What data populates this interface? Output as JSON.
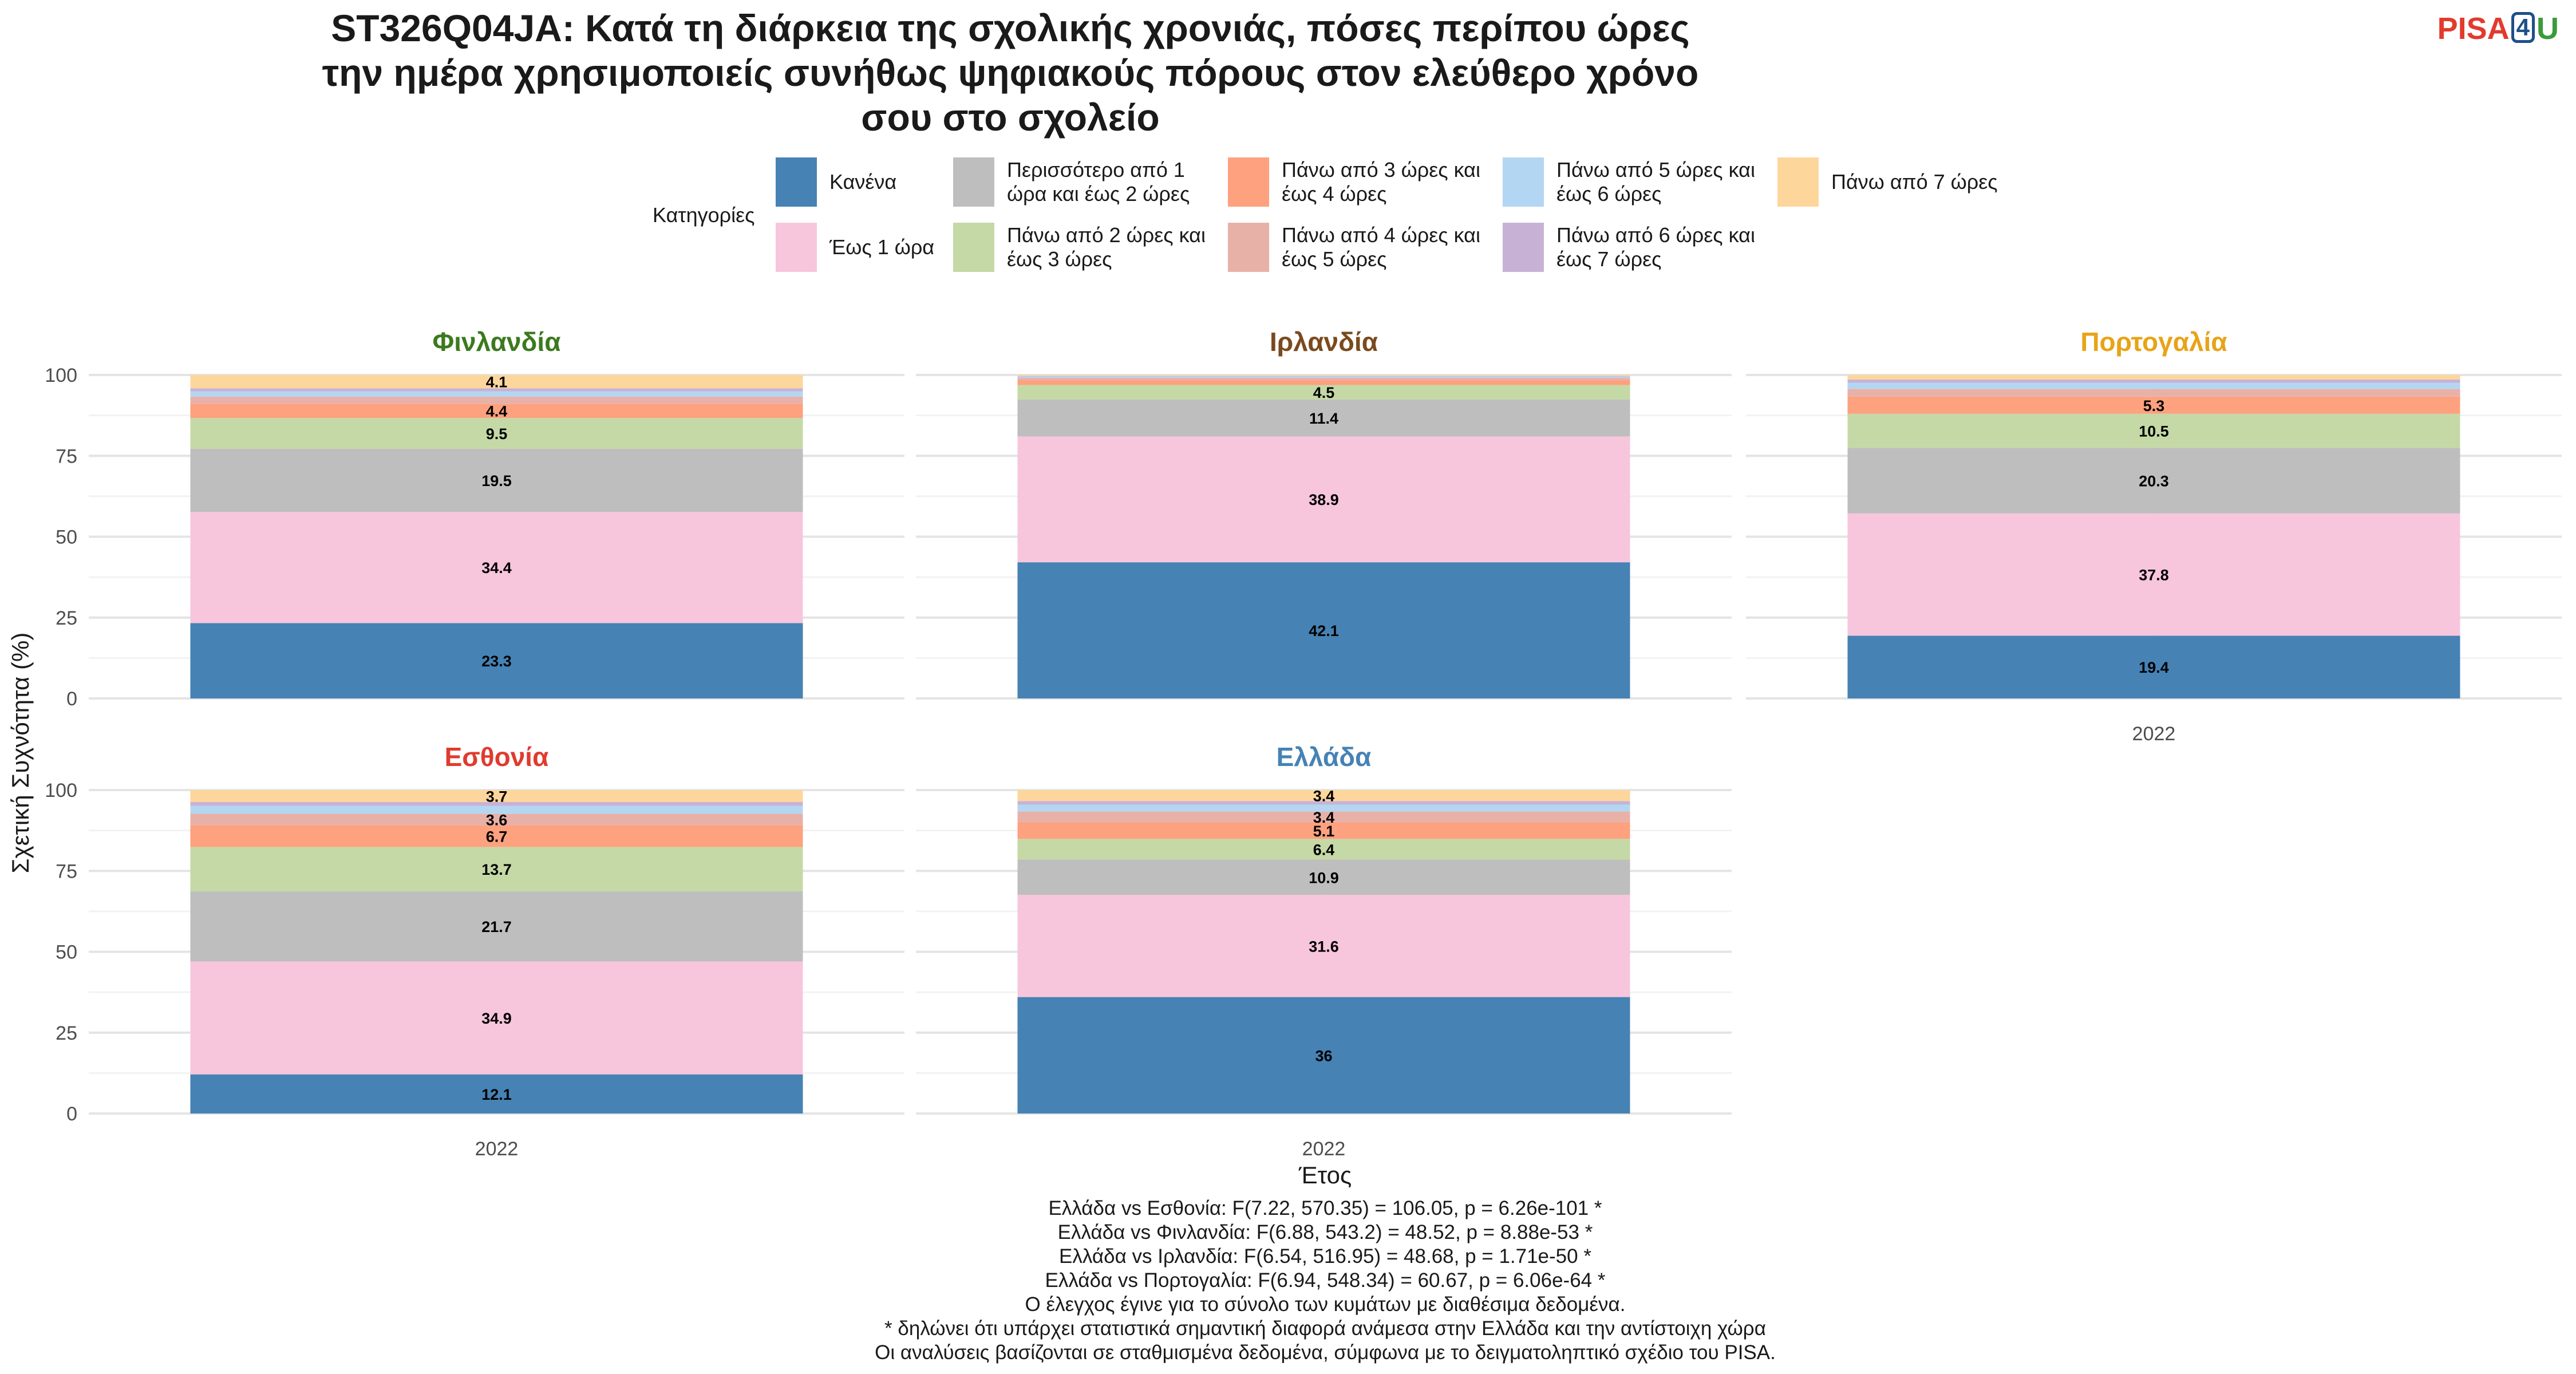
{
  "title_lines": [
    "ST326Q04JA: Κατά τη διάρκεια της σχολικής χρονιάς, πόσες περίπου ώρες",
    "την ημέρα χρησιμοποιείς συνήθως ψηφιακούς πόρους στον ελεύθερο χρόνο",
    "σου στο σχολείο"
  ],
  "logo": {
    "part1": "PISA",
    "part2": "4",
    "part3": "U"
  },
  "legend": {
    "title": "Κατηγορίες",
    "items": [
      {
        "label": "Κανένα",
        "color": "#4682b4"
      },
      {
        "label": "Έως 1 ώρα",
        "color": "#f7c6dc"
      },
      {
        "label": "Περισσότερο από 1\nώρα και έως 2 ώρες",
        "color": "#bebebe"
      },
      {
        "label": "Πάνω από 2 ώρες και\nέως 3 ώρες",
        "color": "#c5d9a6"
      },
      {
        "label": "Πάνω από 3 ώρες και\nέως 4 ώρες",
        "color": "#fda17e"
      },
      {
        "label": "Πάνω από 4 ώρες και\nέως 5 ώρες",
        "color": "#e8b1a8"
      },
      {
        "label": "Πάνω από 5 ώρες και\nέως 6 ώρες",
        "color": "#b3d6f2"
      },
      {
        "label": "Πάνω από 6 ώρες και\nέως 7 ώρες",
        "color": "#c7b2d6"
      },
      {
        "label": "Πάνω από 7 ώρες",
        "color": "#fdd69c"
      }
    ]
  },
  "chart_data": {
    "type": "bar",
    "stacked": true,
    "ylabel": "Σχετική Συχνότητα (%)",
    "xlabel": "Έτος",
    "ylim": [
      0,
      100
    ],
    "yticks": [
      0,
      25,
      50,
      75,
      100
    ],
    "categories": [
      "2022"
    ],
    "grid": true,
    "legend_position": "top",
    "panels": [
      {
        "country": "Φινλανδία",
        "title_color": "#3b7a1e",
        "values": [
          23.3,
          34.4,
          19.5,
          9.5,
          4.4,
          2.2,
          1.6,
          1.0,
          4.1
        ],
        "labels": [
          "23.3",
          "34.4",
          "19.5",
          "9.5",
          "4.4",
          "",
          "",
          "",
          "4.1"
        ],
        "show_x_axis": false
      },
      {
        "country": "Ιρλανδία",
        "title_color": "#7a4a1e",
        "values": [
          42.1,
          38.9,
          11.4,
          4.5,
          1.5,
          0.7,
          0.4,
          0.2,
          0.3
        ],
        "labels": [
          "42.1",
          "38.9",
          "11.4",
          "4.5",
          "",
          "",
          "",
          "",
          ""
        ],
        "show_x_axis": false
      },
      {
        "country": "Πορτογαλία",
        "title_color": "#e8a317",
        "values": [
          19.4,
          37.8,
          20.3,
          10.5,
          5.3,
          2.4,
          1.9,
          1.0,
          1.4
        ],
        "labels": [
          "19.4",
          "37.8",
          "20.3",
          "10.5",
          "5.3",
          "",
          "",
          "",
          ""
        ],
        "show_x_axis": true
      },
      {
        "country": "Εσθονία",
        "title_color": "#e03b2e",
        "values": [
          12.1,
          34.9,
          21.7,
          13.7,
          6.7,
          3.6,
          2.4,
          1.2,
          3.7
        ],
        "labels": [
          "12.1",
          "34.9",
          "21.7",
          "13.7",
          "6.7",
          "3.6",
          "",
          "",
          "3.7"
        ],
        "show_x_axis": true
      },
      {
        "country": "Ελλάδα",
        "title_color": "#4682b4",
        "values": [
          36,
          31.6,
          10.9,
          6.4,
          5.1,
          3.4,
          2.1,
          1.1,
          3.4
        ],
        "labels": [
          "36",
          "31.6",
          "10.9",
          "6.4",
          "5.1",
          "3.4",
          "",
          "",
          "3.4"
        ],
        "show_x_axis": true
      }
    ]
  },
  "footer_lines": [
    "Ελλάδα vs Εσθονία: F(7.22, 570.35) = 106.05, p = 6.26e-101 *",
    "Ελλάδα vs Φινλανδία: F(6.88, 543.2) = 48.52, p = 8.88e-53 *",
    "Ελλάδα vs Ιρλανδία: F(6.54, 516.95) = 48.68, p = 1.71e-50 *",
    "Ελλάδα vs Πορτογαλία: F(6.94, 548.34) = 60.67, p = 6.06e-64 *",
    "Ο έλεγχος έγινε για το σύνολο των κυμάτων με διαθέσιμα δεδομένα.",
    "* δηλώνει ότι υπάρχει στατιστικά σημαντική διαφορά ανάμεσα στην Ελλάδα και την αντίστοιχη χώρα",
    "Οι αναλύσεις βασίζονται σε σταθμισμένα δεδομένα, σύμφωνα με το δειγματοληπτικό σχέδιο του PISA."
  ]
}
